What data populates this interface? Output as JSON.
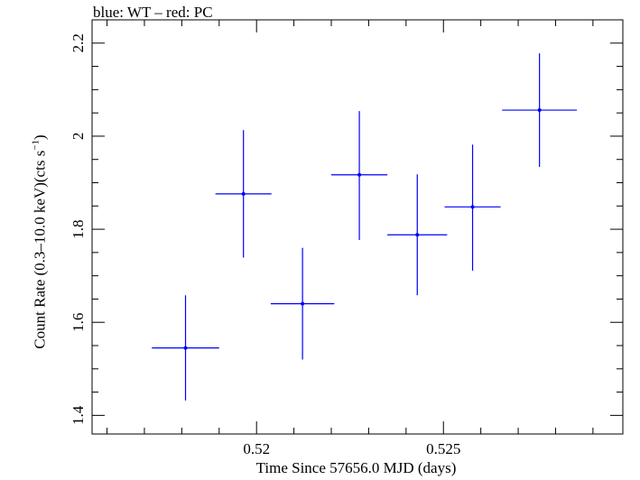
{
  "chart_data": {
    "type": "scatter",
    "title": "blue: WT – red: PC",
    "xlabel": "Time Since 57656.0 MJD (days)",
    "ylabel_main": "Count Rate (0.3–10.0 keV)(cts s",
    "ylabel_sup": "−1",
    "ylabel_end": ")",
    "xlim": [
      0.5156,
      0.5298
    ],
    "ylim": [
      1.36,
      2.25
    ],
    "xticks": [
      0.52,
      0.525
    ],
    "xtick_labels": [
      "0.52",
      "0.525"
    ],
    "yticks": [
      1.4,
      1.6,
      1.8,
      2.0,
      2.2
    ],
    "ytick_labels": [
      "1.4",
      "1.6",
      "1.8",
      "2",
      "2.2"
    ],
    "series": [
      {
        "name": "WT",
        "color": "#0000ff",
        "points": [
          {
            "x": 0.5181,
            "y": 1.545,
            "xerr": 0.0009,
            "yerr_low": 0.113,
            "yerr_high": 0.113
          },
          {
            "x": 0.51965,
            "y": 1.876,
            "xerr": 0.00075,
            "yerr_low": 0.137,
            "yerr_high": 0.137
          },
          {
            "x": 0.52123,
            "y": 1.64,
            "xerr": 0.00085,
            "yerr_low": 0.12,
            "yerr_high": 0.12
          },
          {
            "x": 0.52275,
            "y": 1.917,
            "xerr": 0.00075,
            "yerr_low": 0.14,
            "yerr_high": 0.137
          },
          {
            "x": 0.5243,
            "y": 1.788,
            "xerr": 0.0008,
            "yerr_low": 0.13,
            "yerr_high": 0.13
          },
          {
            "x": 0.52578,
            "y": 1.848,
            "xerr": 0.00075,
            "yerr_low": 0.137,
            "yerr_high": 0.134
          },
          {
            "x": 0.52757,
            "y": 2.056,
            "xerr": 0.001,
            "yerr_low": 0.122,
            "yerr_high": 0.122
          }
        ]
      }
    ]
  }
}
